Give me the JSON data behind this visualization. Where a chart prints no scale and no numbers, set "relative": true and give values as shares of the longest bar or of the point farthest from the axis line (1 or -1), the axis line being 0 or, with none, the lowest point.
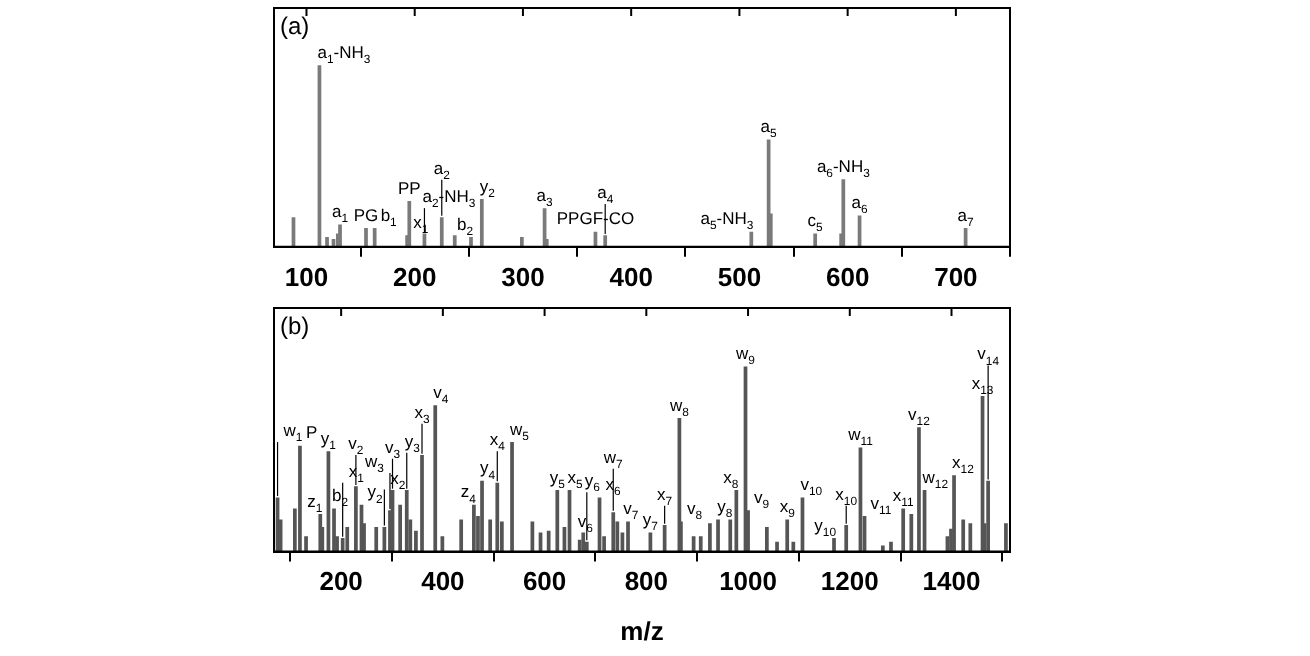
{
  "chart_data": [
    {
      "type": "bar",
      "title": "(a)",
      "relative": true,
      "color": "#7a7a7a",
      "xlim": [
        70,
        750
      ],
      "xticks": [
        100,
        200,
        300,
        400,
        500,
        600,
        700
      ],
      "x": [
        88,
        112,
        119,
        125,
        129,
        131,
        155,
        163,
        193,
        195,
        209,
        225,
        237,
        252,
        262,
        299,
        320,
        322,
        367,
        376,
        511,
        527,
        529,
        570,
        594,
        596,
        611,
        709
      ],
      "values": [
        0.16,
        1.0,
        0.05,
        0.04,
        0.07,
        0.12,
        0.1,
        0.1,
        0.06,
        0.25,
        0.07,
        0.16,
        0.06,
        0.05,
        0.26,
        0.05,
        0.21,
        0.04,
        0.08,
        0.06,
        0.08,
        0.59,
        0.18,
        0.07,
        0.07,
        0.37,
        0.17,
        0.1
      ],
      "annotations": [
        {
          "text": "a$_{1}$-NH$_{3}$",
          "x": 112,
          "y": 1.0
        },
        {
          "text": "a$_{1}$",
          "x": 131,
          "y": 0.12
        },
        {
          "text": "PG",
          "x": 155,
          "y": 0.1
        },
        {
          "text": "b$_{1}$",
          "x": 163,
          "y": 0.1
        },
        {
          "text": "x$_{1}$",
          "x": 193,
          "y": 0.06
        },
        {
          "text": "PP",
          "x": 195,
          "y": 0.25
        },
        {
          "text": "a$_{2}$-NH$_{3}$",
          "x": 209,
          "y": 0.07
        },
        {
          "text": "a$_{2}$",
          "x": 225,
          "y": 0.16
        },
        {
          "text": "b$_{2}$",
          "x": 252,
          "y": 0.05
        },
        {
          "text": "y$_{2}$",
          "x": 262,
          "y": 0.26
        },
        {
          "text": "a$_{3}$",
          "x": 320,
          "y": 0.21
        },
        {
          "text": "PPGF-CO",
          "x": 367,
          "y": 0.08
        },
        {
          "text": "a$_{4}$",
          "x": 376,
          "y": 0.06
        },
        {
          "text": "a$_{5}$-NH$_{3}$",
          "x": 511,
          "y": 0.08
        },
        {
          "text": "a$_{5}$",
          "x": 527,
          "y": 0.59
        },
        {
          "text": "c$_{5}$",
          "x": 570,
          "y": 0.07
        },
        {
          "text": "a$_{6}$-NH$_{3}$",
          "x": 596,
          "y": 0.37
        },
        {
          "text": "a$_{6}$",
          "x": 611,
          "y": 0.17
        },
        {
          "text": "a$_{7}$",
          "x": 709,
          "y": 0.1
        }
      ]
    },
    {
      "type": "bar",
      "title": "(b)",
      "relative": true,
      "color": "#555555",
      "xlabel": "m/z",
      "xlim": [
        68,
        1515
      ],
      "xticks": [
        200,
        400,
        600,
        800,
        1000,
        1200,
        1400
      ],
      "x": [
        75,
        81,
        109,
        119,
        131,
        159,
        163,
        175,
        186,
        192,
        203,
        212,
        229,
        240,
        245,
        269,
        285,
        296,
        301,
        316,
        329,
        336,
        347,
        359,
        385,
        399,
        436,
        461,
        469,
        477,
        493,
        507,
        516,
        536,
        576,
        592,
        608,
        625,
        639,
        649,
        669,
        676,
        683,
        708,
        717,
        735,
        743,
        753,
        764,
        808,
        836,
        865,
        868,
        893,
        907,
        925,
        941,
        965,
        977,
        995,
        1000,
        1037,
        1057,
        1077,
        1089,
        1107,
        1169,
        1193,
        1221,
        1229,
        1265,
        1281,
        1305,
        1321,
        1336,
        1347,
        1392,
        1399,
        1405,
        1423,
        1437,
        1461,
        1465,
        1472,
        1507
      ],
      "values": [
        0.29,
        0.17,
        0.23,
        0.57,
        0.08,
        0.2,
        0.13,
        0.54,
        0.23,
        0.08,
        0.07,
        0.13,
        0.35,
        0.25,
        0.15,
        0.13,
        0.13,
        0.22,
        0.33,
        0.25,
        0.33,
        0.17,
        0.11,
        0.52,
        0.79,
        0.08,
        0.17,
        0.25,
        0.19,
        0.38,
        0.17,
        0.37,
        0.16,
        0.59,
        0.16,
        0.1,
        0.11,
        0.33,
        0.13,
        0.33,
        0.06,
        0.1,
        0.05,
        0.29,
        0.08,
        0.21,
        0.16,
        0.1,
        0.16,
        0.1,
        0.14,
        0.72,
        0.16,
        0.08,
        0.08,
        0.15,
        0.17,
        0.17,
        0.33,
        1.0,
        0.22,
        0.13,
        0.05,
        0.17,
        0.05,
        0.29,
        0.07,
        0.14,
        0.56,
        0.19,
        0.03,
        0.05,
        0.23,
        0.2,
        0.67,
        0.33,
        0.08,
        0.12,
        0.41,
        0.17,
        0.15,
        0.84,
        0.15,
        0.38,
        0.15
      ],
      "annotations": [
        {
          "text": "w$_{1}$",
          "x": 75,
          "y": 0.29
        },
        {
          "text": "P",
          "x": 119,
          "y": 0.57
        },
        {
          "text": "z$_{1}$",
          "x": 159,
          "y": 0.2
        },
        {
          "text": "y$_{1}$",
          "x": 175,
          "y": 0.54
        },
        {
          "text": "b$_{2}$",
          "x": 186,
          "y": 0.23
        },
        {
          "text": "x$_{1}$",
          "x": 203,
          "y": 0.07
        },
        {
          "text": "v$_{2}$",
          "x": 229,
          "y": 0.35
        },
        {
          "text": "y$_{2}$",
          "x": 240,
          "y": 0.25
        },
        {
          "text": "x$_{2}$",
          "x": 285,
          "y": 0.13
        },
        {
          "text": "w$_{3}$",
          "x": 296,
          "y": 0.22
        },
        {
          "text": "v$_{3}$",
          "x": 301,
          "y": 0.33
        },
        {
          "text": "y$_{3}$",
          "x": 329,
          "y": 0.33
        },
        {
          "text": "x$_{3}$",
          "x": 359,
          "y": 0.52
        },
        {
          "text": "v$_{4}$",
          "x": 385,
          "y": 0.79
        },
        {
          "text": "z$_{4}$",
          "x": 461,
          "y": 0.25
        },
        {
          "text": "y$_{4}$",
          "x": 477,
          "y": 0.38
        },
        {
          "text": "x$_{4}$",
          "x": 507,
          "y": 0.37
        },
        {
          "text": "w$_{5}$",
          "x": 536,
          "y": 0.59
        },
        {
          "text": "y$_{5}$",
          "x": 625,
          "y": 0.33
        },
        {
          "text": "x$_{5}$",
          "x": 649,
          "y": 0.33
        },
        {
          "text": "v$_{6}$",
          "x": 669,
          "y": 0.06
        },
        {
          "text": "y$_{6}$",
          "x": 683,
          "y": 0.05
        },
        {
          "text": "x$_{6}$",
          "x": 708,
          "y": 0.29
        },
        {
          "text": "w$_{7}$",
          "x": 735,
          "y": 0.21
        },
        {
          "text": "v$_{7}$",
          "x": 743,
          "y": 0.16
        },
        {
          "text": "y$_{7}$",
          "x": 808,
          "y": 0.1
        },
        {
          "text": "x$_{7}$",
          "x": 836,
          "y": 0.14
        },
        {
          "text": "w$_{8}$",
          "x": 865,
          "y": 0.72
        },
        {
          "text": "v$_{8}$",
          "x": 868,
          "y": 0.16
        },
        {
          "text": "y$_{8}$",
          "x": 965,
          "y": 0.17
        },
        {
          "text": "x$_{8}$",
          "x": 977,
          "y": 0.33
        },
        {
          "text": "w$_{9}$",
          "x": 995,
          "y": 1.0
        },
        {
          "text": "v$_{9}$",
          "x": 1000,
          "y": 0.22
        },
        {
          "text": "x$_{9}$",
          "x": 1077,
          "y": 0.17
        },
        {
          "text": "v$_{10}$",
          "x": 1107,
          "y": 0.29
        },
        {
          "text": "y$_{10}$",
          "x": 1169,
          "y": 0.07
        },
        {
          "text": "x$_{10}$",
          "x": 1193,
          "y": 0.14
        },
        {
          "text": "w$_{11}$",
          "x": 1221,
          "y": 0.56
        },
        {
          "text": "v$_{11}$",
          "x": 1229,
          "y": 0.19
        },
        {
          "text": "x$_{11}$",
          "x": 1305,
          "y": 0.23
        },
        {
          "text": "v$_{12}$",
          "x": 1336,
          "y": 0.67
        },
        {
          "text": "w$_{12}$",
          "x": 1347,
          "y": 0.33
        },
        {
          "text": "x$_{12}$",
          "x": 1405,
          "y": 0.41
        },
        {
          "text": "x$_{13}$",
          "x": 1461,
          "y": 0.84
        },
        {
          "text": "v$_{14}$",
          "x": 1472,
          "y": 0.38
        }
      ]
    }
  ]
}
